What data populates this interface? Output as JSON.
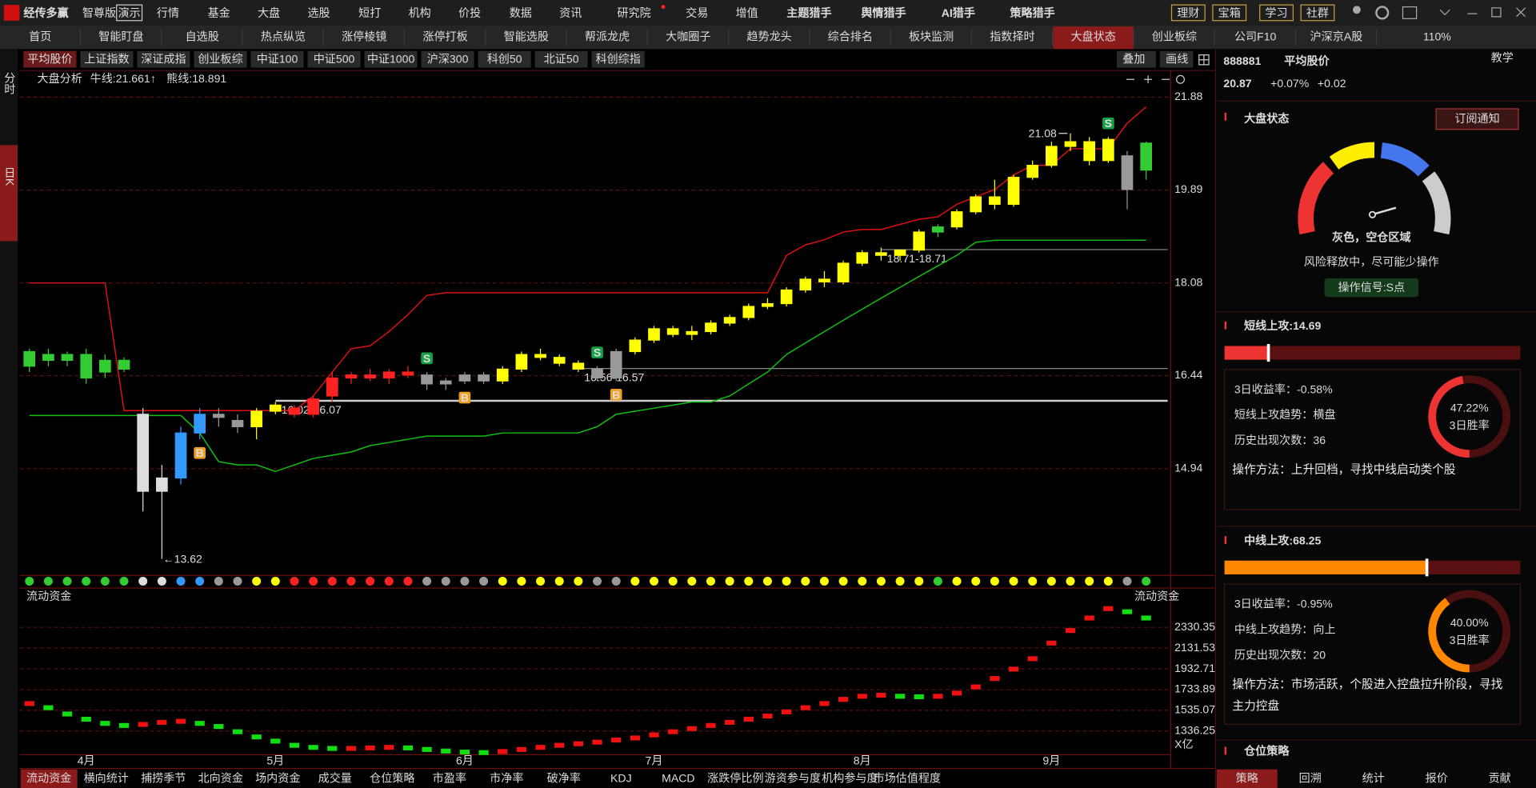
{
  "top_menu": {
    "logo": "经传多赢",
    "edition": "智尊版",
    "demo": "演示",
    "items": [
      "行情",
      "基金",
      "大盘",
      "选股",
      "短打",
      "机构",
      "价投",
      "数据",
      "资讯",
      "研究院",
      "交易",
      "增值",
      "主题猎手",
      "舆情猎手",
      "AI猎手",
      "策略猎手"
    ],
    "buttons": [
      "理财",
      "宝箱",
      "学习",
      "社群"
    ]
  },
  "tabs": {
    "items": [
      "首页",
      "智能盯盘",
      "自选股",
      "热点纵览",
      "涨停棱镜",
      "涨停打板",
      "智能选股",
      "帮派龙虎",
      "大咖圈子",
      "趋势龙头",
      "综合排名",
      "板块监测",
      "指数择时",
      "大盘状态",
      "创业板综",
      "公司F10",
      "沪深京A股"
    ],
    "active": 13,
    "zoom": "110%"
  },
  "side_tabs": [
    "分时",
    "日K"
  ],
  "index_buttons": {
    "items": [
      "平均股价",
      "上证指数",
      "深证成指",
      "创业板综",
      "中证100",
      "中证500",
      "中证1000",
      "沪深300",
      "科创50",
      "北证50",
      "科创综指"
    ],
    "active": 0,
    "tools": [
      "叠加",
      "画线"
    ]
  },
  "chart_data": [
    {
      "type": "candlestick",
      "title": "大盘分析",
      "log": true,
      "grid": true,
      "ylim": [
        13.42,
        22.08
      ],
      "yticks": [
        21.88,
        19.89,
        18.08,
        16.44,
        14.94
      ],
      "series": [
        {
          "name": "牛线:21.661↑",
          "color": "#e01010",
          "values": [
            18.08,
            18.08,
            18.08,
            18.08,
            18.08,
            15.86,
            15.86,
            15.86,
            15.86,
            15.86,
            15.86,
            15.86,
            15.86,
            15.86,
            15.86,
            16.1,
            16.5,
            16.9,
            16.95,
            17.2,
            17.5,
            17.85,
            17.9,
            17.9,
            17.9,
            17.9,
            17.9,
            17.9,
            17.9,
            17.9,
            17.9,
            17.9,
            17.9,
            17.9,
            17.9,
            17.9,
            17.9,
            17.9,
            17.9,
            17.9,
            18.6,
            18.8,
            18.9,
            19.05,
            19.1,
            19.1,
            19.2,
            19.3,
            19.35,
            19.6,
            19.75,
            19.9,
            20.2,
            20.4,
            20.4,
            20.75,
            20.75,
            20.75,
            21.3,
            21.661
          ]
        },
        {
          "name": "熊线:18.891",
          "color": "#10c010",
          "values": [
            15.78,
            15.78,
            15.78,
            15.78,
            15.78,
            15.78,
            15.78,
            15.78,
            15.78,
            15.5,
            15.05,
            15.0,
            15.0,
            14.9,
            15.0,
            15.1,
            15.15,
            15.2,
            15.3,
            15.35,
            15.4,
            15.45,
            15.45,
            15.45,
            15.45,
            15.5,
            15.5,
            15.5,
            15.5,
            15.5,
            15.6,
            15.8,
            15.85,
            15.9,
            15.95,
            16.0,
            16.0,
            16.1,
            16.3,
            16.5,
            16.8,
            17.0,
            17.2,
            17.4,
            17.6,
            17.8,
            18.0,
            18.2,
            18.4,
            18.6,
            18.85,
            18.89,
            18.89,
            18.89,
            18.89,
            18.89,
            18.89,
            18.89,
            18.89,
            18.891
          ]
        }
      ],
      "candles": [
        [
          16.6,
          16.9,
          16.5,
          16.85
        ],
        [
          16.8,
          16.9,
          16.6,
          16.7
        ],
        [
          16.7,
          16.85,
          16.6,
          16.8
        ],
        [
          16.8,
          16.9,
          16.3,
          16.4
        ],
        [
          16.5,
          16.8,
          16.4,
          16.7
        ],
        [
          16.7,
          16.75,
          16.5,
          16.55
        ],
        [
          15.8,
          15.9,
          14.3,
          14.6
        ],
        [
          14.6,
          15.0,
          13.62,
          14.8
        ],
        [
          14.8,
          15.6,
          14.7,
          15.5
        ],
        [
          15.5,
          15.9,
          15.4,
          15.8
        ],
        [
          15.8,
          15.9,
          15.6,
          15.75
        ],
        [
          15.7,
          15.8,
          15.5,
          15.6
        ],
        [
          15.6,
          15.9,
          15.4,
          15.85
        ],
        [
          15.85,
          16.0,
          15.8,
          15.95
        ],
        [
          15.9,
          15.95,
          15.75,
          15.8
        ],
        [
          15.8,
          16.1,
          15.75,
          16.05
        ],
        [
          16.1,
          16.5,
          16.0,
          16.4
        ],
        [
          16.4,
          16.5,
          16.3,
          16.45
        ],
        [
          16.45,
          16.55,
          16.35,
          16.4
        ],
        [
          16.4,
          16.55,
          16.3,
          16.5
        ],
        [
          16.5,
          16.6,
          16.4,
          16.45
        ],
        [
          16.45,
          16.5,
          16.2,
          16.3
        ],
        [
          16.3,
          16.4,
          16.2,
          16.35
        ],
        [
          16.35,
          16.5,
          16.3,
          16.45
        ],
        [
          16.45,
          16.5,
          16.3,
          16.35
        ],
        [
          16.35,
          16.6,
          16.3,
          16.55
        ],
        [
          16.55,
          16.85,
          16.5,
          16.8
        ],
        [
          16.8,
          16.9,
          16.7,
          16.75
        ],
        [
          16.75,
          16.8,
          16.6,
          16.65
        ],
        [
          16.65,
          16.7,
          16.5,
          16.55
        ],
        [
          16.55,
          16.6,
          16.35,
          16.4
        ],
        [
          16.4,
          16.9,
          16.35,
          16.85
        ],
        [
          16.85,
          17.1,
          16.8,
          17.05
        ],
        [
          17.05,
          17.3,
          17.0,
          17.25
        ],
        [
          17.25,
          17.3,
          17.1,
          17.15
        ],
        [
          17.15,
          17.3,
          17.05,
          17.2
        ],
        [
          17.2,
          17.4,
          17.15,
          17.35
        ],
        [
          17.35,
          17.5,
          17.3,
          17.45
        ],
        [
          17.45,
          17.7,
          17.4,
          17.65
        ],
        [
          17.65,
          17.8,
          17.6,
          17.7
        ],
        [
          17.7,
          18.0,
          17.65,
          17.95
        ],
        [
          17.95,
          18.2,
          17.9,
          18.15
        ],
        [
          18.15,
          18.3,
          18.0,
          18.1
        ],
        [
          18.1,
          18.5,
          18.05,
          18.45
        ],
        [
          18.45,
          18.7,
          18.4,
          18.65
        ],
        [
          18.65,
          18.75,
          18.5,
          18.6
        ],
        [
          18.6,
          18.71,
          18.5,
          18.7
        ],
        [
          18.7,
          19.1,
          18.65,
          19.05
        ],
        [
          19.05,
          19.2,
          18.95,
          19.15
        ],
        [
          19.15,
          19.5,
          19.1,
          19.45
        ],
        [
          19.45,
          19.8,
          19.4,
          19.75
        ],
        [
          19.75,
          20.1,
          19.5,
          19.6
        ],
        [
          19.6,
          20.2,
          19.55,
          20.15
        ],
        [
          20.15,
          20.5,
          20.1,
          20.4
        ],
        [
          20.4,
          20.9,
          20.35,
          20.8
        ],
        [
          20.8,
          21.08,
          20.7,
          20.9
        ],
        [
          20.9,
          21.0,
          20.4,
          20.5
        ],
        [
          20.5,
          21.0,
          20.45,
          20.95
        ],
        [
          20.6,
          20.7,
          19.5,
          19.9
        ],
        [
          20.3,
          20.9,
          20.1,
          20.87
        ]
      ],
      "colors": [
        "#33cc33",
        "#33cc33",
        "#33cc33",
        "#33cc33",
        "#33cc33",
        "#33cc33",
        "#dddddd",
        "#dddddd",
        "#3399ff",
        "#3399ff",
        "#999999",
        "#999999",
        "#ffff00",
        "#ffff00",
        "#ff2222",
        "#ff2222",
        "#ff2222",
        "#ff2222",
        "#ff2222",
        "#ff2222",
        "#ff2222",
        "#999999",
        "#999999",
        "#999999",
        "#999999",
        "#ffff00",
        "#ffff00",
        "#ffff00",
        "#ffff00",
        "#ffff00",
        "#999999",
        "#999999",
        "#ffff00",
        "#ffff00",
        "#ffff00",
        "#ffff00",
        "#ffff00",
        "#ffff00",
        "#ffff00",
        "#ffff00",
        "#ffff00",
        "#ffff00",
        "#ffff00",
        "#ffff00",
        "#ffff00",
        "#ffff00",
        "#ffff00",
        "#ffff00",
        "#33cc33",
        "#ffff00",
        "#ffff00",
        "#ffff00",
        "#ffff00",
        "#ffff00",
        "#ffff00",
        "#ffff00",
        "#ffff00",
        "#ffff00",
        "#999999",
        "#33cc33"
      ],
      "high_label": {
        "label": "21.08",
        "index": 55
      },
      "low_label": {
        "label": "←13.62",
        "index": 7
      },
      "levels": [
        {
          "label": "16.02-16.07",
          "value": 16.02,
          "from": 13
        },
        {
          "label": "16.56-16.57",
          "value": 16.56,
          "from": 29
        },
        {
          "label": "18.71-18.71",
          "value": 18.71,
          "from": 45
        }
      ],
      "sell_signals": {
        "label": "S",
        "indices": [
          21,
          30,
          57
        ]
      },
      "buy_signals": {
        "label": "B",
        "indices": [
          9,
          23,
          31
        ]
      }
    },
    {
      "type": "flow",
      "title": "流动资金",
      "title_right": "流动资金",
      "unit": "X亿",
      "grid": true,
      "up_color": "#ee1111",
      "down_color": "#11dd11",
      "ylim": [
        1110,
        2660
      ],
      "yticks": [
        2330.35,
        2131.53,
        1932.71,
        1733.89,
        1535.07,
        1336.25
      ],
      "xticks": [
        {
          "value": 3,
          "label": "4月"
        },
        {
          "value": 13,
          "label": "5月"
        },
        {
          "value": 23,
          "label": "6月"
        },
        {
          "value": 33,
          "label": "7月"
        },
        {
          "value": 44,
          "label": "8月"
        },
        {
          "value": 54,
          "label": "9月"
        }
      ],
      "values": [
        1600,
        1560,
        1500,
        1450,
        1410,
        1390,
        1400,
        1420,
        1430,
        1410,
        1380,
        1330,
        1280,
        1240,
        1200,
        1180,
        1170,
        1170,
        1175,
        1180,
        1175,
        1160,
        1145,
        1135,
        1130,
        1140,
        1160,
        1180,
        1200,
        1215,
        1230,
        1250,
        1270,
        1300,
        1330,
        1360,
        1390,
        1420,
        1450,
        1480,
        1520,
        1560,
        1600,
        1640,
        1670,
        1680,
        1670,
        1665,
        1670,
        1700,
        1760,
        1840,
        1930,
        2030,
        2180,
        2300,
        2420,
        2510,
        2480,
        2420
      ]
    }
  ],
  "bottom_tabs": {
    "items": [
      "流动资金",
      "横向统计",
      "捕捞季节",
      "北向资金",
      "场内资金",
      "成交量",
      "仓位策略",
      "市盈率",
      "市净率",
      "破净率",
      "KDJ",
      "MACD",
      "涨跌停比例",
      "游资参与度",
      "机构参与度",
      "市场估值程度"
    ],
    "active": 0
  },
  "right_panel": {
    "code": "888881",
    "name": "平均股价",
    "price": "20.87",
    "change_pct": "+0.07%",
    "change": "+0.02",
    "teach": "教学",
    "section": "大盘状态",
    "subscribe": "订阅通知",
    "state": "灰色，空仓区域",
    "state_desc": "风险释放中，尽可能少操作",
    "signal": "操作信号:S点",
    "short": {
      "label": "短线上攻:",
      "value": 14.69,
      "color": "#ee3333",
      "rows": [
        "3日收益率：-0.58%",
        "短线上攻趋势：横盘",
        "历史出现次数：36",
        "操作方法：上升回档，寻找中线启动类个股"
      ],
      "win_rate": 47.22,
      "win_rate_label": "47.22%",
      "win_caption": "3日胜率"
    },
    "mid": {
      "label": "中线上攻:",
      "value": 68.25,
      "color": "#ff8800",
      "rows": [
        "3日收益率：-0.95%",
        "中线上攻趋势：向上",
        "历史出现次数：20",
        "操作方法：市场活跃，个股进入控盘拉升阶段，寻找主力控盘"
      ],
      "win_rate": 40.0,
      "win_rate_label": "40.00%",
      "win_caption": "3日胜率"
    },
    "position": "仓位策略",
    "tabs": [
      "策略",
      "回溯",
      "统计",
      "报价",
      "贡献"
    ],
    "active_tab": 0
  }
}
